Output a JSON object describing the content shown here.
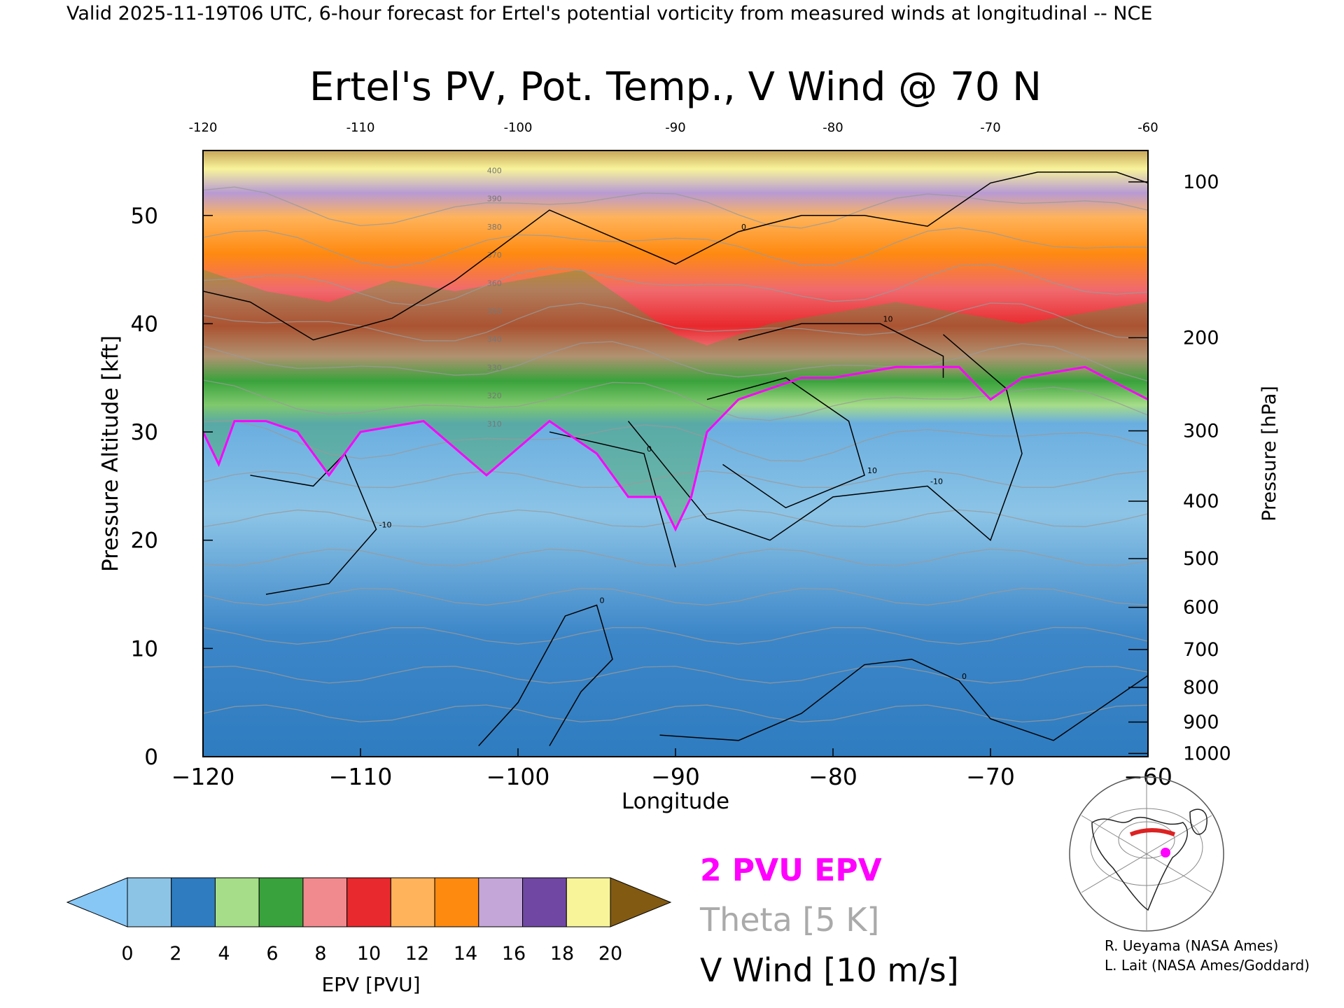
{
  "header": {
    "valid_line": "Valid 2025-11-19T06 UTC, 6-hour forecast for Ertel's potential vorticity from measured winds at longitudinal -- NCE"
  },
  "chart_data": {
    "type": "heatmap",
    "title": "Ertel's PV, Pot. Temp., V Wind @ 70 N",
    "xlabel": "Longitude",
    "ylabel_left": "Pressure Altitude [kft]",
    "ylabel_right": "Pressure [hPa]",
    "xlim": [
      -120,
      -60
    ],
    "ylim": [
      0,
      56
    ],
    "x_ticks": [
      -120,
      -110,
      -100,
      -90,
      -80,
      -70,
      -60
    ],
    "x_tick_labels": [
      "−120",
      "−110",
      "−100",
      "−90",
      "−80",
      "−70",
      "−60"
    ],
    "x_top_tick_labels": [
      "-120",
      "-110",
      "-100",
      "-90",
      "-80",
      "-70",
      "-60"
    ],
    "y_ticks": [
      0,
      10,
      20,
      30,
      40,
      50
    ],
    "y_tick_labels": [
      "0",
      "10",
      "20",
      "30",
      "40",
      "50"
    ],
    "pressure_ticks": [
      {
        "hpa": 100,
        "kft": 53.1,
        "label": "100"
      },
      {
        "hpa": 200,
        "kft": 38.7,
        "label": "200"
      },
      {
        "hpa": 300,
        "kft": 30.1,
        "label": "300"
      },
      {
        "hpa": 400,
        "kft": 23.6,
        "label": "400"
      },
      {
        "hpa": 500,
        "kft": 18.3,
        "label": "500"
      },
      {
        "hpa": 600,
        "kft": 13.8,
        "label": "600"
      },
      {
        "hpa": 700,
        "kft": 9.9,
        "label": "700"
      },
      {
        "hpa": 800,
        "kft": 6.4,
        "label": "800"
      },
      {
        "hpa": 900,
        "kft": 3.2,
        "label": "900"
      },
      {
        "hpa": 1000,
        "kft": 0.3,
        "label": "1000"
      }
    ],
    "pv_2pvu_contour": {
      "x": [
        -120,
        -119,
        -118,
        -116,
        -114,
        -112,
        -110,
        -106,
        -102,
        -98,
        -95,
        -93,
        -91,
        -90,
        -89,
        -88,
        -86,
        -84,
        -82,
        -80,
        -76,
        -72,
        -70,
        -68,
        -64,
        -60
      ],
      "y": [
        30,
        27,
        31,
        31,
        30,
        26,
        30,
        31,
        26,
        31,
        28,
        24,
        24,
        21,
        24,
        30,
        33,
        34,
        35,
        35,
        36,
        36,
        33,
        35,
        36,
        33
      ]
    },
    "tropopause_band": {
      "x": [
        -120,
        -116,
        -112,
        -108,
        -104,
        -100,
        -96,
        -92,
        -90,
        -88,
        -84,
        -80,
        -76,
        -72,
        -68,
        -64,
        -60
      ],
      "top_y": [
        45,
        43,
        42,
        44,
        43,
        44,
        45,
        41,
        39,
        38,
        40,
        41,
        42,
        41,
        40,
        41,
        42
      ]
    },
    "v_wind_contours": [
      {
        "label": "0",
        "x": [
          -120,
          -117,
          -113,
          -108,
          -104,
          -98,
          -94,
          -90,
          -86,
          -82,
          -78,
          -74,
          -70,
          -67,
          -62,
          -60
        ],
        "y": [
          43,
          42,
          38.5,
          40.5,
          44,
          50.5,
          48,
          45.5,
          48.5,
          50,
          50,
          49,
          53,
          54,
          54,
          53
        ]
      },
      {
        "label": "0",
        "x": [
          -98,
          -92,
          -90
        ],
        "y": [
          30,
          28,
          17.5
        ]
      },
      {
        "label": "0",
        "x": [
          -102.5,
          -100,
          -97,
          -95,
          -94,
          -96,
          -98
        ],
        "y": [
          1,
          5,
          13,
          14,
          9,
          6,
          1
        ]
      },
      {
        "label": "0",
        "x": [
          -91,
          -86,
          -82,
          -78,
          -75,
          -72,
          -70,
          -66,
          -62,
          -60
        ],
        "y": [
          2,
          1.5,
          4,
          8.5,
          9,
          7,
          3.5,
          1.5,
          5.5,
          7.5
        ]
      },
      {
        "label": "-10",
        "x": [
          -117,
          -113,
          -111,
          -109,
          -112,
          -116
        ],
        "y": [
          26,
          25,
          28,
          21,
          16,
          15
        ]
      },
      {
        "label": "-10",
        "x": [
          -93,
          -88,
          -84,
          -80,
          -74,
          -70,
          -68,
          -69,
          -73
        ],
        "y": [
          31,
          22,
          20,
          24,
          25,
          20,
          28,
          34,
          39
        ]
      },
      {
        "label": "10",
        "x": [
          -88,
          -83,
          -79,
          -78,
          -83,
          -87
        ],
        "y": [
          33,
          35,
          31,
          26,
          23,
          27
        ]
      },
      {
        "label": "10",
        "x": [
          -86,
          -82,
          -77,
          -73,
          -73
        ],
        "y": [
          38.5,
          40,
          40,
          37,
          35
        ]
      }
    ],
    "theta_levels": [
      270,
      280,
      290,
      300,
      310,
      320,
      330,
      340,
      350,
      360,
      370,
      380,
      390,
      400
    ],
    "theta_labels": [
      "310",
      "320",
      "330",
      "340",
      "350",
      "360",
      "370",
      "380",
      "390",
      "400"
    ]
  },
  "colorbar": {
    "label": "EPV [PVU]",
    "tick_labels": [
      "0",
      "2",
      "4",
      "6",
      "8",
      "10",
      "12",
      "14",
      "16",
      "18",
      "20"
    ],
    "colors": [
      "#8cc4e6",
      "#2f7cc0",
      "#a6dd88",
      "#3aa23c",
      "#f08a8e",
      "#e8292d",
      "#ffb35a",
      "#ff8a10",
      "#c4a6d8",
      "#7048a4",
      "#f8f49a"
    ],
    "under_color": "#86c7f6",
    "over_color": "#825a12"
  },
  "legend": {
    "pv_label": "2 PVU EPV",
    "pv_color": "#ff00ff",
    "theta_label": "Theta [5 K]",
    "theta_color": "#aaaaaa",
    "wind_label": "V Wind [10 m/s]",
    "wind_color": "#000000"
  },
  "credits": {
    "line1": "R. Ueyama (NASA Ames)",
    "line2": "L. Lait (NASA Ames/Goddard)"
  }
}
